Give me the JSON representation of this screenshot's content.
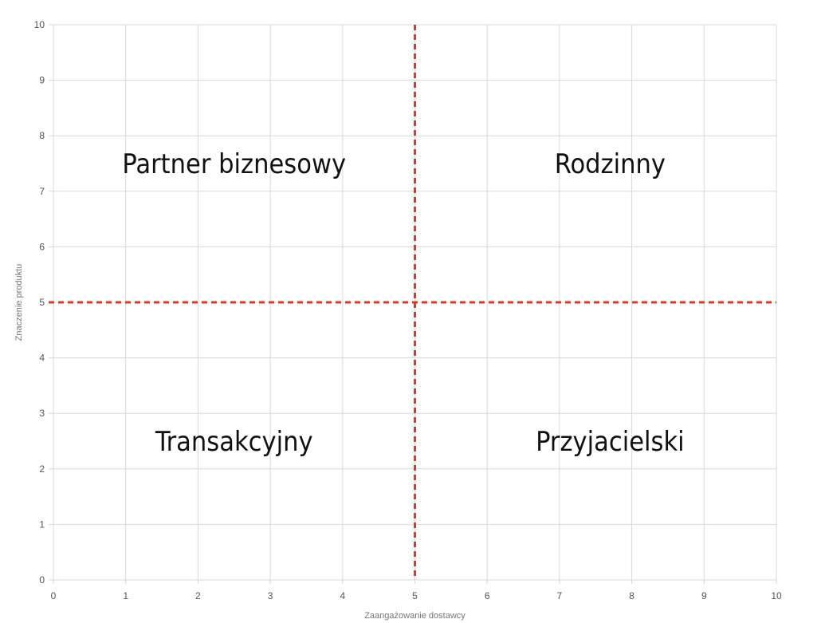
{
  "chart_data": {
    "type": "scatter",
    "title": "",
    "xlabel": "Zaangażowanie dostawcy",
    "ylabel": "Znaczenie produktu",
    "xlim": [
      0,
      10
    ],
    "ylim": [
      0,
      10
    ],
    "x_ticks": [
      "0",
      "1",
      "2",
      "3",
      "4",
      "5",
      "6",
      "7",
      "8",
      "9",
      "10"
    ],
    "y_ticks": [
      "0",
      "1",
      "2",
      "3",
      "4",
      "5",
      "6",
      "7",
      "8",
      "9",
      "10"
    ],
    "grid": true,
    "legend": "none",
    "thresholds": {
      "x": 5,
      "y": 5,
      "color": "#e03a1e",
      "style": "dashed"
    },
    "quadrants": [
      {
        "label": "Partner biznesowy",
        "x": 2.5,
        "y": 7.5
      },
      {
        "label": "Rodzinny",
        "x": 7.7,
        "y": 7.5
      },
      {
        "label": "Transakcyjny",
        "x": 2.5,
        "y": 2.5
      },
      {
        "label": "Przyjacielski",
        "x": 7.7,
        "y": 2.5
      }
    ],
    "colors": {
      "grid": "#d4dadd",
      "axis": "#c8cfd2",
      "text": "#111111"
    }
  }
}
